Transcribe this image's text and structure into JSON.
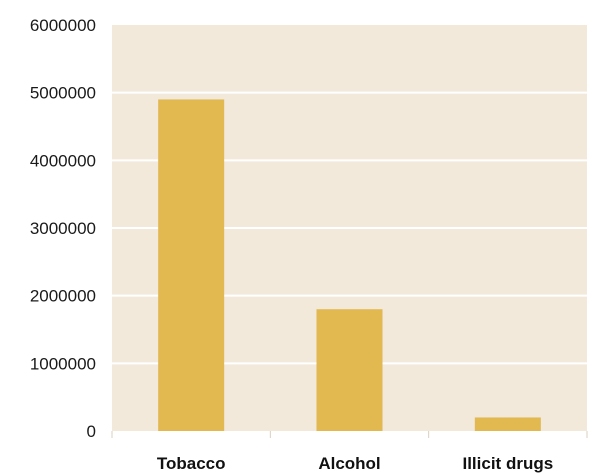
{
  "chart_data": {
    "type": "bar",
    "categories": [
      "Tobacco",
      "Alcohol",
      "Illicit drugs"
    ],
    "values": [
      4900000,
      1800000,
      200000
    ],
    "ylim": [
      0,
      6000000
    ],
    "yticks": [
      0,
      1000000,
      2000000,
      3000000,
      4000000,
      5000000,
      6000000
    ],
    "ytick_labels": [
      "0",
      "1000000",
      "2000000",
      "3000000",
      "4000000",
      "5000000",
      "6000000"
    ],
    "grid": true,
    "legend": "none",
    "colors": {
      "bar": "#e2b851",
      "plot_background": "#f2e9da",
      "gridline": "#ffffff",
      "category_separator": "#d9d0c0"
    }
  }
}
